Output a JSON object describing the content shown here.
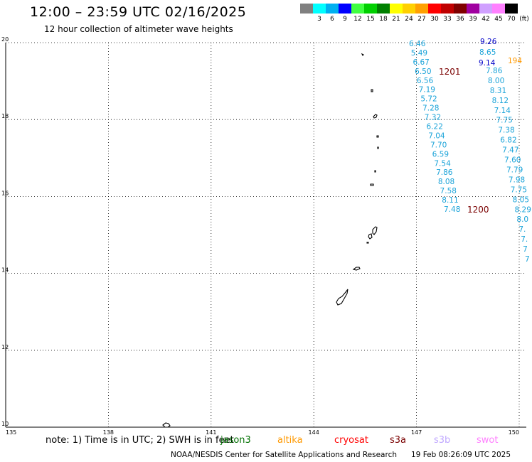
{
  "header": {
    "title": "12:00 – 23:59 UTC 02/16/2025",
    "subtitle": "12 hour collection of altimeter wave heights"
  },
  "colorbar": {
    "unit": "(ft)",
    "bins": [
      {
        "label": "",
        "color": "#808080"
      },
      {
        "label": "3",
        "color": "#00ffff"
      },
      {
        "label": "6",
        "color": "#00b0f0"
      },
      {
        "label": "9",
        "color": "#0000ff"
      },
      {
        "label": "12",
        "color": "#40ff40"
      },
      {
        "label": "15",
        "color": "#00d000"
      },
      {
        "label": "18",
        "color": "#008000"
      },
      {
        "label": "21",
        "color": "#ffff00"
      },
      {
        "label": "24",
        "color": "#ffd000"
      },
      {
        "label": "27",
        "color": "#ffa000"
      },
      {
        "label": "30",
        "color": "#ff0000"
      },
      {
        "label": "33",
        "color": "#c00000"
      },
      {
        "label": "36",
        "color": "#800000"
      },
      {
        "label": "39",
        "color": "#a000a0"
      },
      {
        "label": "42",
        "color": "#d0a0ff"
      },
      {
        "label": "45",
        "color": "#ff80ff"
      },
      {
        "label": "70",
        "color": "#000000"
      }
    ]
  },
  "map": {
    "lon_range": [
      135,
      150
    ],
    "lat_range": [
      10,
      20
    ],
    "lon_ticks": [
      "135",
      "138",
      "141",
      "144",
      "147",
      "150"
    ],
    "lat_ticks": [
      "20",
      "18",
      "16",
      "14",
      "12",
      "10"
    ],
    "grid_lines": "dotted",
    "track_a": {
      "color": "#1aa3d9",
      "values": [
        "6.46",
        "5.49",
        "6.67",
        "6.50",
        "6.56",
        "7.19",
        "5.72",
        "7.28",
        "7.32",
        "6.22",
        "7.04",
        "7.70",
        "6.59",
        "7.54",
        "7.86",
        "8.08",
        "7.58",
        "8.11",
        "7.48"
      ],
      "start_label": "1201",
      "end_label": "1200"
    },
    "track_b": {
      "top_values": [
        {
          "text": "9.26",
          "color": "#0000c8"
        },
        {
          "text": "8.65",
          "color": "#1aa3d9"
        },
        {
          "text": "9.14",
          "color": "#0000c8"
        }
      ],
      "values": [
        "7.86",
        "8.00",
        "8.31",
        "8.12",
        "7.14",
        "7.75",
        "7.38",
        "6.82",
        "7.47",
        "7.60",
        "7.79",
        "7.98",
        "7.75",
        "8.05",
        "8.29",
        "8.0",
        "7.",
        "7.",
        "7",
        "7"
      ],
      "color": "#1aa3d9",
      "cut_label": {
        "text": "194",
        "color": "#ff9900"
      }
    }
  },
  "footer": {
    "note": "note:  1) Time is in UTC;  2) SWH is in feet",
    "satellites": [
      {
        "name": "jason3",
        "color": "#007000"
      },
      {
        "name": "altika",
        "color": "#ff9900"
      },
      {
        "name": "cryosat",
        "color": "#ff0000"
      },
      {
        "name": "s3a",
        "color": "#7a0000"
      },
      {
        "name": "s3b",
        "color": "#c0a8ff"
      },
      {
        "name": "swot",
        "color": "#ff80ff"
      }
    ],
    "credit": "NOAA/NESDIS Center for Satellite Applications and Research",
    "timestamp": "19 Feb 08:26:09 UTC 2025"
  }
}
